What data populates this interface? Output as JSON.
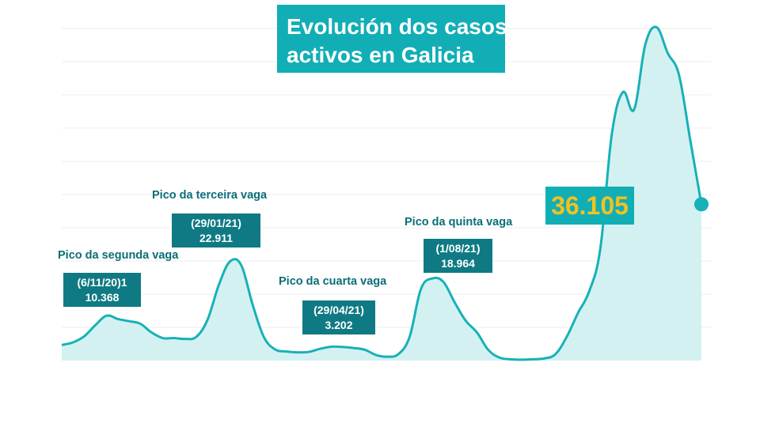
{
  "title": {
    "line1": "Evolución dos casos",
    "line2": "activos en Galicia"
  },
  "colors": {
    "line": "#17b1b7",
    "area": "#d4f1f2",
    "title_bg": "#12aeb6",
    "box_bg": "#0f7a83",
    "label": "#0a6e78",
    "highlight": "#f2c21e",
    "grid": "#ececec"
  },
  "annotations": [
    {
      "label": "Pico da segunda vaga",
      "date": "(6/11/20)1",
      "value": "10.368"
    },
    {
      "label": "Pico da terceira vaga",
      "date": "(29/01/21)",
      "value": "22.911"
    },
    {
      "label": "Pico da cuarta vaga",
      "date": "(29/04/21)",
      "value": "3.202"
    },
    {
      "label": "Pico da quinta vaga",
      "date": "(1/08/21)",
      "value": "18.964"
    }
  ],
  "current_value": "36.105",
  "chart_data": {
    "type": "area",
    "title": "Evolución dos casos activos en Galicia",
    "xlabel": "",
    "ylabel": "",
    "grid": true,
    "ylim": [
      0,
      80000
    ],
    "series": [
      {
        "values": [
          3600,
          4200,
          5600,
          8200,
          10368,
          9600,
          9100,
          8500,
          6500,
          5200,
          5200,
          5000,
          5500,
          9500,
          17500,
          22911,
          22000,
          13000,
          5500,
          2600,
          2100,
          1900,
          2000,
          2700,
          3202,
          3150,
          2900,
          2500,
          1300,
          900,
          1500,
          5500,
          16500,
          18964,
          18200,
          13500,
          9200,
          6500,
          2500,
          700,
          300,
          200,
          300,
          500,
          1500,
          5500,
          11000,
          16000,
          26000,
          52000,
          62000,
          58000,
          73000,
          77000,
          71000,
          66000,
          51000,
          36105
        ]
      }
    ]
  }
}
